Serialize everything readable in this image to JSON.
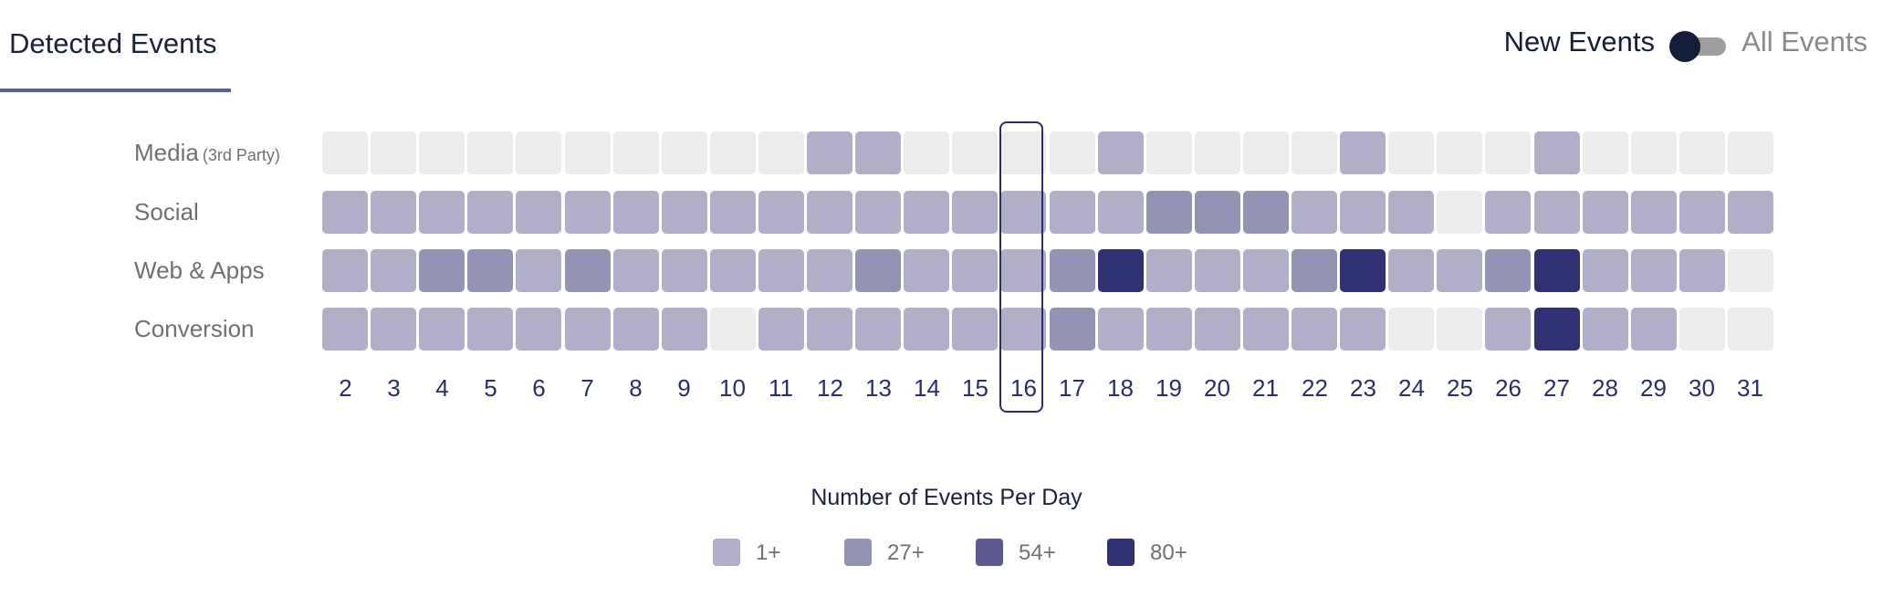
{
  "tab": {
    "label": "Detected Events"
  },
  "toggle": {
    "left_label": "New Events",
    "right_label": "All Events"
  },
  "legend": {
    "title": "Number of Events Per Day",
    "items": [
      {
        "label": "1+",
        "color": "#b0aec8"
      },
      {
        "label": "27+",
        "color": "#9393b3"
      },
      {
        "label": "54+",
        "color": "#5d5a8f"
      },
      {
        "label": "80+",
        "color": "#2f3173"
      }
    ]
  },
  "chart_data": {
    "type": "heatmap",
    "title": "",
    "x": [
      "2",
      "3",
      "4",
      "5",
      "6",
      "7",
      "8",
      "9",
      "10",
      "11",
      "12",
      "13",
      "14",
      "15",
      "16",
      "17",
      "18",
      "19",
      "20",
      "21",
      "22",
      "23",
      "24",
      "25",
      "26",
      "27",
      "28",
      "29",
      "30",
      "31"
    ],
    "highlighted_day": "16",
    "rows": [
      {
        "label": "Media",
        "suffix": "(3rd Party)",
        "levels": [
          0,
          0,
          0,
          0,
          0,
          0,
          0,
          0,
          0,
          0,
          1,
          1,
          0,
          0,
          0,
          0,
          1,
          0,
          0,
          0,
          0,
          1,
          0,
          0,
          0,
          1,
          0,
          0,
          0,
          0
        ]
      },
      {
        "label": "Social",
        "suffix": "",
        "levels": [
          1,
          1,
          1,
          1,
          1,
          1,
          1,
          1,
          1,
          1,
          1,
          1,
          1,
          1,
          1,
          1,
          1,
          2,
          2,
          2,
          1,
          1,
          1,
          0,
          1,
          1,
          1,
          1,
          1,
          1
        ]
      },
      {
        "label": "Web & Apps",
        "suffix": "",
        "levels": [
          1,
          1,
          2,
          2,
          1,
          2,
          1,
          1,
          1,
          1,
          1,
          2,
          1,
          1,
          1,
          2,
          4,
          1,
          1,
          1,
          2,
          4,
          1,
          1,
          2,
          4,
          1,
          1,
          1,
          0
        ]
      },
      {
        "label": "Conversion",
        "suffix": "",
        "levels": [
          1,
          1,
          1,
          1,
          1,
          1,
          1,
          1,
          0,
          1,
          1,
          1,
          1,
          1,
          1,
          2,
          1,
          1,
          1,
          1,
          1,
          1,
          0,
          0,
          1,
          4,
          1,
          1,
          0,
          0
        ]
      }
    ],
    "level_colors": [
      "#ececec",
      "#b0aec8",
      "#9393b3",
      "#5d5a8f",
      "#2f3173"
    ],
    "legend_placement": "bottom"
  }
}
